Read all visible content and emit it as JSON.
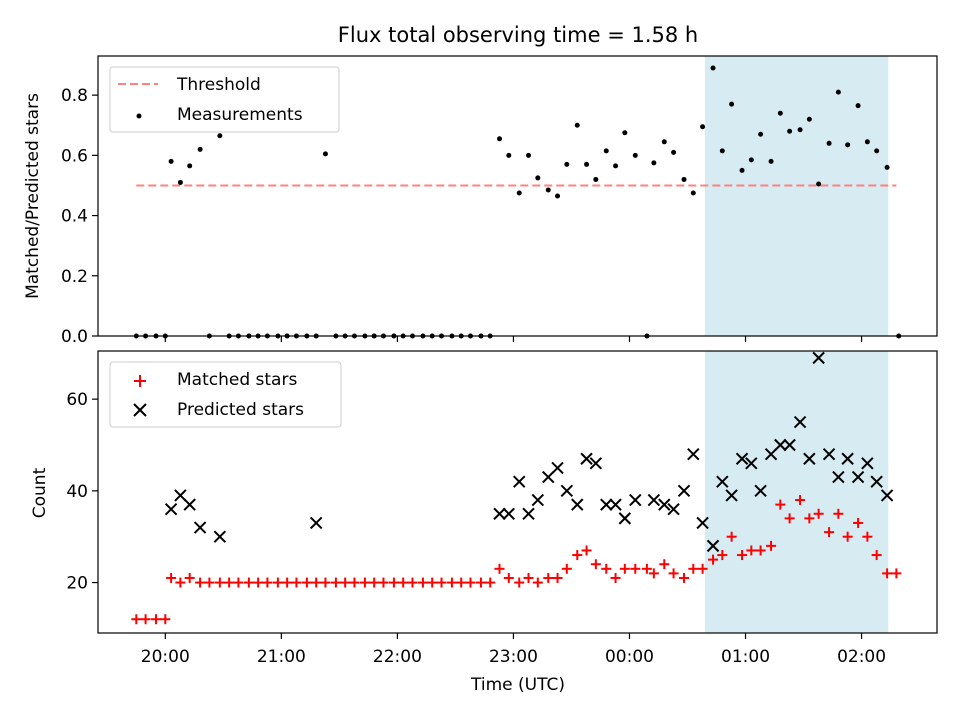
{
  "title": "Flux total observing time = 1.58 h",
  "xlabel": "Time (UTC)",
  "x_ticks": [
    "20:00",
    "21:00",
    "22:00",
    "23:00",
    "00:00",
    "01:00",
    "02:00"
  ],
  "x_tick_hours": [
    20,
    21,
    22,
    23,
    24,
    25,
    26
  ],
  "xlim": [
    19.42,
    26.65
  ],
  "highlight_span": [
    24.65,
    26.23
  ],
  "colors": {
    "threshold": "#ff8080",
    "measurement": "#000000",
    "matched": "#ff0000",
    "predicted": "#000000",
    "highlight": "#add8e6"
  },
  "chart_data": [
    {
      "type": "scatter",
      "ylabel": "Matched/Predicted stars",
      "ylim": [
        0,
        0.93
      ],
      "y_ticks": [
        0.0,
        0.2,
        0.4,
        0.6,
        0.8
      ],
      "y_tick_labels": [
        "0.0",
        "0.2",
        "0.4",
        "0.6",
        "0.8"
      ],
      "legend": {
        "location": "upper left",
        "threshold_label": "Threshold",
        "measurement_label": "Measurements"
      },
      "threshold": {
        "value": 0.5,
        "x_range": [
          19.75,
          26.3
        ]
      },
      "x": [
        19.75,
        19.83,
        19.92,
        20.0,
        20.05,
        20.13,
        20.21,
        20.3,
        20.38,
        20.47,
        20.55,
        20.63,
        20.72,
        20.8,
        20.88,
        20.97,
        21.05,
        21.13,
        21.22,
        21.3,
        21.38,
        21.47,
        21.55,
        21.63,
        21.72,
        21.8,
        21.88,
        21.97,
        22.05,
        22.13,
        22.22,
        22.3,
        22.38,
        22.47,
        22.55,
        22.63,
        22.72,
        22.8,
        22.88,
        22.96,
        23.05,
        23.13,
        23.21,
        23.3,
        23.38,
        23.46,
        23.55,
        23.63,
        23.71,
        23.8,
        23.88,
        23.96,
        24.05,
        24.15,
        24.21,
        24.3,
        24.38,
        24.47,
        24.55,
        24.63,
        24.72,
        24.8,
        24.88,
        24.97,
        25.05,
        25.13,
        25.22,
        25.3,
        25.38,
        25.47,
        25.55,
        25.63,
        25.72,
        25.8,
        25.88,
        25.97,
        26.05,
        26.13,
        26.22,
        26.32
      ],
      "y": [
        0,
        0,
        0,
        0,
        0.58,
        0.51,
        0.565,
        0.62,
        0,
        0.665,
        0,
        0,
        0,
        0,
        0,
        0,
        0,
        0,
        0,
        0,
        0.605,
        0,
        0,
        0,
        0,
        0,
        0,
        0,
        0,
        0,
        0,
        0,
        0,
        0,
        0,
        0,
        0,
        0,
        0.655,
        0.6,
        0.475,
        0.6,
        0.525,
        0.485,
        0.465,
        0.57,
        0.7,
        0.57,
        0.52,
        0.615,
        0.565,
        0.675,
        0.6,
        0,
        0.575,
        0.645,
        0.61,
        0.52,
        0.475,
        0.695,
        0.89,
        0.615,
        0.77,
        0.55,
        0.585,
        0.67,
        0.58,
        0.74,
        0.68,
        0.685,
        0.72,
        0.505,
        0.64,
        0.81,
        0.635,
        0.765,
        0.645,
        0.615,
        0.56,
        0
      ]
    },
    {
      "type": "scatter",
      "ylabel": "Count",
      "ylim": [
        9,
        70.5
      ],
      "y_ticks": [
        20,
        40,
        60
      ],
      "y_tick_labels": [
        "20",
        "40",
        "60"
      ],
      "legend": {
        "location": "upper left",
        "matched_label": "Matched stars",
        "predicted_label": "Predicted stars"
      },
      "series": [
        {
          "name": "Matched stars",
          "marker": "+",
          "x": [
            19.75,
            19.83,
            19.92,
            20.0,
            20.05,
            20.13,
            20.21,
            20.3,
            20.38,
            20.47,
            20.55,
            20.63,
            20.72,
            20.8,
            20.88,
            20.97,
            21.05,
            21.13,
            21.22,
            21.3,
            21.38,
            21.47,
            21.55,
            21.63,
            21.72,
            21.8,
            21.88,
            21.97,
            22.05,
            22.13,
            22.22,
            22.3,
            22.38,
            22.47,
            22.55,
            22.63,
            22.72,
            22.8,
            22.88,
            22.96,
            23.05,
            23.13,
            23.21,
            23.3,
            23.38,
            23.46,
            23.55,
            23.63,
            23.71,
            23.8,
            23.88,
            23.96,
            24.05,
            24.15,
            24.21,
            24.3,
            24.38,
            24.47,
            24.55,
            24.63,
            24.72,
            24.8,
            24.88,
            24.97,
            25.05,
            25.13,
            25.22,
            25.3,
            25.38,
            25.47,
            25.55,
            25.63,
            25.72,
            25.8,
            25.88,
            25.97,
            26.05,
            26.13,
            26.22,
            26.3
          ],
          "y": [
            12,
            12,
            12,
            12,
            21,
            20,
            21,
            20,
            20,
            20,
            20,
            20,
            20,
            20,
            20,
            20,
            20,
            20,
            20,
            20,
            20,
            20,
            20,
            20,
            20,
            20,
            20,
            20,
            20,
            20,
            20,
            20,
            20,
            20,
            20,
            20,
            20,
            20,
            23,
            21,
            20,
            21,
            20,
            21,
            21,
            23,
            26,
            27,
            24,
            23,
            21,
            23,
            23,
            23,
            22,
            24,
            22,
            21,
            23,
            23,
            25,
            26,
            30,
            26,
            27,
            27,
            28,
            37,
            34,
            38,
            34,
            35,
            31,
            35,
            30,
            33,
            30,
            26,
            22,
            22
          ]
        },
        {
          "name": "Predicted stars",
          "marker": "x",
          "x": [
            20.05,
            20.13,
            20.21,
            20.3,
            20.47,
            21.3,
            22.88,
            22.96,
            23.05,
            23.13,
            23.21,
            23.3,
            23.38,
            23.46,
            23.55,
            23.63,
            23.71,
            23.8,
            23.88,
            23.96,
            24.05,
            24.21,
            24.3,
            24.38,
            24.47,
            24.55,
            24.63,
            24.72,
            24.8,
            24.88,
            24.97,
            25.05,
            25.13,
            25.22,
            25.3,
            25.38,
            25.47,
            25.55,
            25.63,
            25.72,
            25.8,
            25.88,
            25.97,
            26.05,
            26.13,
            26.22
          ],
          "y": [
            36,
            39,
            37,
            32,
            30,
            33,
            35,
            35,
            42,
            35,
            38,
            43,
            45,
            40,
            37,
            47,
            46,
            37,
            37,
            34,
            38,
            38,
            37,
            36,
            40,
            48,
            33,
            28,
            42,
            39,
            47,
            46,
            40,
            48,
            50,
            50,
            55,
            47,
            69,
            48,
            43,
            47,
            43,
            46,
            42,
            39
          ]
        }
      ]
    }
  ]
}
